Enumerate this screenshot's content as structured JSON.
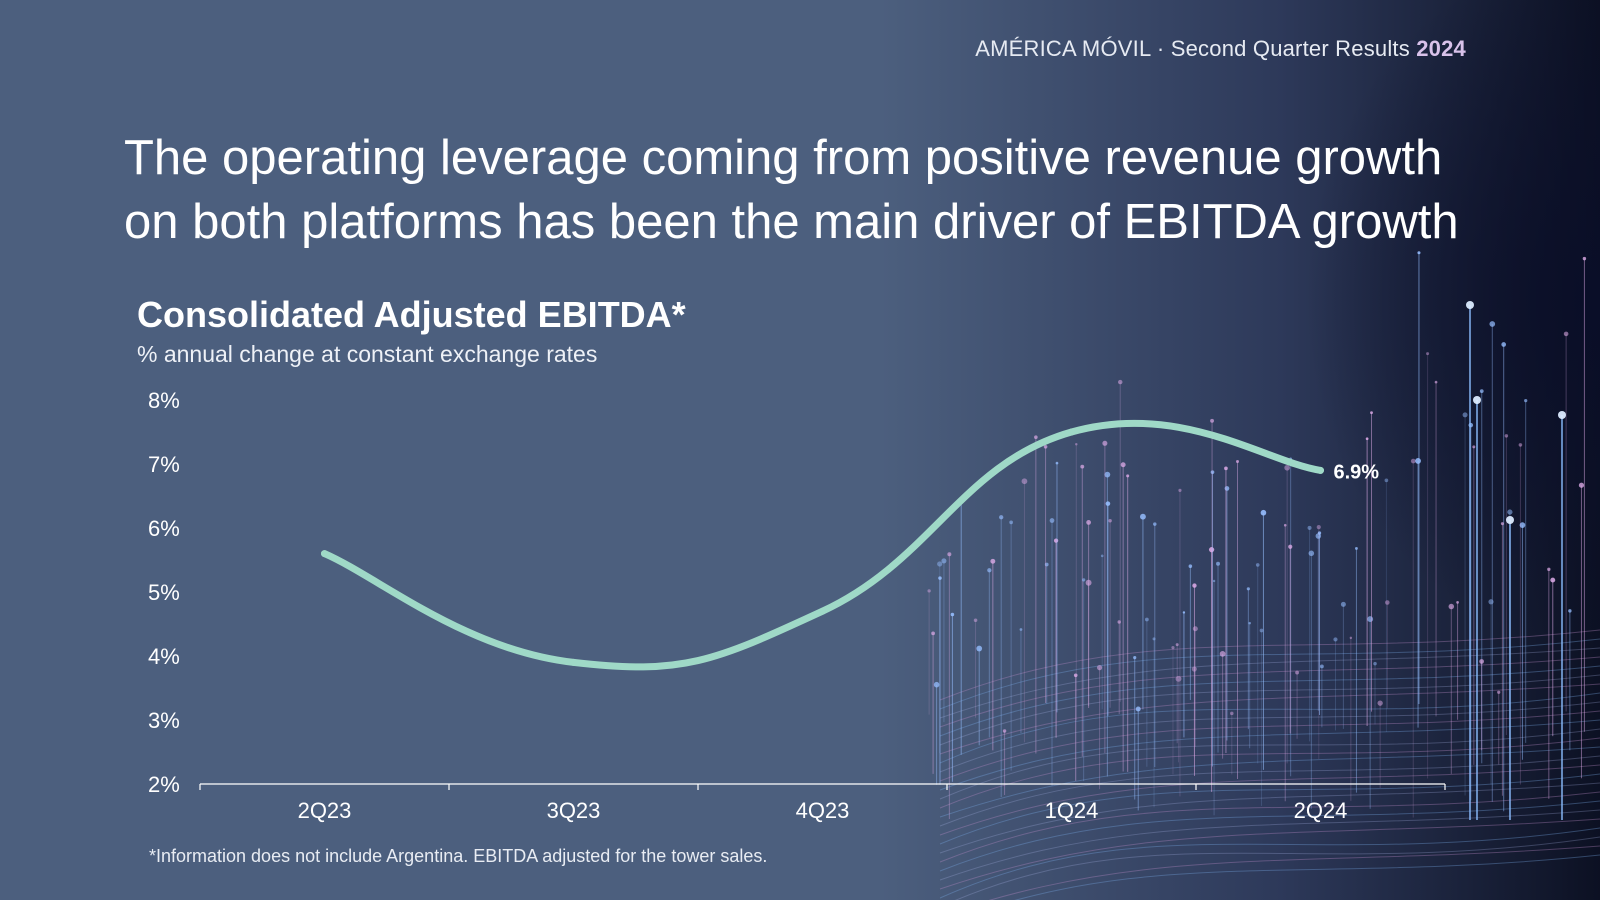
{
  "header": {
    "brand": "AMÉRICA MÓVIL",
    "separator": "·",
    "report": "Second Quarter Results",
    "year": "2024"
  },
  "headline": "The operating leverage coming from positive revenue growth on both platforms has been the main driver of EBITDA growth",
  "footnote": "*Information does not include Argentina. EBITDA adjusted for the tower sales.",
  "colors": {
    "line": "#9fd9c7",
    "axis": "#ffffff",
    "year_accent": "#d9c2ea"
  },
  "chart_data": {
    "type": "line",
    "title": "Consolidated Adjusted EBITDA*",
    "subtitle": "% annual change at constant exchange rates",
    "categories": [
      "2Q23",
      "3Q23",
      "4Q23",
      "1Q24",
      "2Q24"
    ],
    "series": [
      {
        "name": "Consolidated Adjusted EBITDA",
        "values": [
          5.6,
          3.9,
          4.7,
          7.5,
          6.9
        ]
      }
    ],
    "ylim": [
      2,
      8
    ],
    "yticks": [
      "2%",
      "3%",
      "4%",
      "5%",
      "6%",
      "7%",
      "8%"
    ],
    "data_label": {
      "category": "2Q24",
      "text": "6.9%"
    },
    "xlabel": "",
    "ylabel": "",
    "grid": false
  }
}
